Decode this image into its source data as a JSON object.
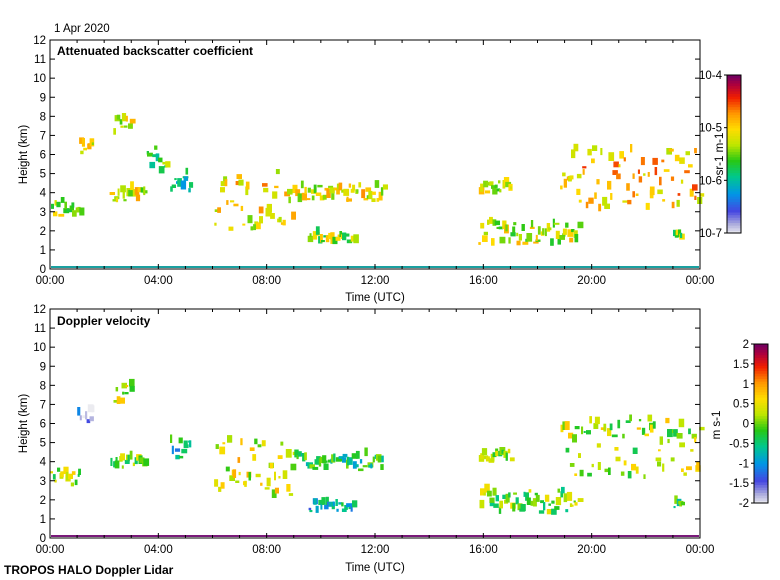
{
  "date_label": "1 Apr 2020",
  "footer": "TROPOS HALO Doppler Lidar",
  "chart_data": [
    {
      "type": "heatmap",
      "title": "Attenuated backscatter coefficient",
      "xlabel": "Time (UTC)",
      "ylabel": "Height (km)",
      "xlim": [
        0,
        24
      ],
      "ylim": [
        0,
        12
      ],
      "x_ticks": [
        0,
        4,
        8,
        12,
        16,
        20,
        24
      ],
      "x_tick_labels": [
        "00:00",
        "04:00",
        "08:00",
        "12:00",
        "16:00",
        "20:00",
        "00:00"
      ],
      "y_ticks": [
        0,
        1,
        2,
        3,
        4,
        5,
        6,
        7,
        8,
        9,
        10,
        11,
        12
      ],
      "colorbar": {
        "scale": "log",
        "range": [
          1e-07,
          0.0001
        ],
        "tick_labels": [
          "10-7",
          "10-6",
          "10-5",
          "10-4"
        ],
        "tick_values": [
          1e-07,
          1e-06,
          1e-05,
          0.0001
        ],
        "unit_label": "sr-1 m-1"
      },
      "features": [
        {
          "t0": 0.0,
          "t1": 1.1,
          "h0": 2.7,
          "h1": 3.5,
          "level": 0.55
        },
        {
          "t0": 1.0,
          "t1": 1.6,
          "h0": 6.0,
          "h1": 6.6,
          "level": 0.62
        },
        {
          "t0": 2.2,
          "t1": 3.5,
          "h0": 3.5,
          "h1": 4.2,
          "level": 0.6
        },
        {
          "t0": 2.3,
          "t1": 3.0,
          "h0": 7.0,
          "h1": 8.0,
          "level": 0.6
        },
        {
          "t0": 3.5,
          "t1": 4.3,
          "h0": 4.8,
          "h1": 6.3,
          "level": 0.45
        },
        {
          "t0": 4.4,
          "t1": 5.2,
          "h0": 4.0,
          "h1": 5.0,
          "level": 0.4
        },
        {
          "t0": 6.0,
          "t1": 9.0,
          "h0": 2.0,
          "h1": 5.0,
          "level": 0.65
        },
        {
          "t0": 9.0,
          "t1": 12.3,
          "h0": 3.5,
          "h1": 4.3,
          "level": 0.62
        },
        {
          "t0": 9.5,
          "t1": 11.2,
          "h0": 1.3,
          "h1": 1.8,
          "level": 0.55
        },
        {
          "t0": 15.8,
          "t1": 17.0,
          "h0": 3.9,
          "h1": 4.5,
          "level": 0.6
        },
        {
          "t0": 15.8,
          "t1": 19.5,
          "h0": 1.2,
          "h1": 2.4,
          "level": 0.58
        },
        {
          "t0": 18.8,
          "t1": 24.0,
          "h0": 3.0,
          "h1": 6.2,
          "level": 0.7
        },
        {
          "t0": 23.0,
          "t1": 23.3,
          "h0": 1.5,
          "h1": 1.9,
          "level": 0.5
        }
      ]
    },
    {
      "type": "heatmap",
      "title": "Doppler velocity",
      "xlabel": "Time (UTC)",
      "ylabel": "Height (km)",
      "xlim": [
        0,
        24
      ],
      "ylim": [
        0,
        12
      ],
      "x_ticks": [
        0,
        4,
        8,
        12,
        16,
        20,
        24
      ],
      "x_tick_labels": [
        "00:00",
        "04:00",
        "08:00",
        "12:00",
        "16:00",
        "20:00",
        "00:00"
      ],
      "y_ticks": [
        0,
        1,
        2,
        3,
        4,
        5,
        6,
        7,
        8,
        9,
        10,
        11,
        12
      ],
      "colorbar": {
        "scale": "linear",
        "range": [
          -2,
          2
        ],
        "tick_labels": [
          "-2",
          "-1.5",
          "-1",
          "-0.5",
          "0",
          "0.5",
          "1",
          "1.5",
          "2"
        ],
        "tick_values": [
          -2,
          -1.5,
          -1,
          -0.5,
          0,
          0.5,
          1,
          1.5,
          2
        ],
        "unit_label": "m s-1"
      },
      "features": [
        {
          "t0": 0.0,
          "t1": 1.1,
          "h0": 2.7,
          "h1": 3.5,
          "level": 0.55
        },
        {
          "t0": 1.0,
          "t1": 1.6,
          "h0": 6.0,
          "h1": 6.6,
          "level": 0.08
        },
        {
          "t0": 2.2,
          "t1": 3.5,
          "h0": 3.5,
          "h1": 4.2,
          "level": 0.5
        },
        {
          "t0": 2.3,
          "t1": 3.0,
          "h0": 7.0,
          "h1": 8.0,
          "level": 0.55
        },
        {
          "t0": 4.4,
          "t1": 5.2,
          "h0": 4.0,
          "h1": 5.0,
          "level": 0.35
        },
        {
          "t0": 6.0,
          "t1": 9.0,
          "h0": 2.0,
          "h1": 5.0,
          "level": 0.6
        },
        {
          "t0": 9.0,
          "t1": 12.3,
          "h0": 3.5,
          "h1": 4.3,
          "level": 0.4
        },
        {
          "t0": 9.5,
          "t1": 11.2,
          "h0": 1.3,
          "h1": 1.8,
          "level": 0.3
        },
        {
          "t0": 15.8,
          "t1": 17.0,
          "h0": 3.9,
          "h1": 4.5,
          "level": 0.5
        },
        {
          "t0": 15.8,
          "t1": 19.5,
          "h0": 1.2,
          "h1": 2.4,
          "level": 0.5
        },
        {
          "t0": 18.8,
          "t1": 24.0,
          "h0": 3.0,
          "h1": 6.2,
          "level": 0.55
        },
        {
          "t0": 23.0,
          "t1": 23.3,
          "h0": 1.5,
          "h1": 1.9,
          "level": 0.45
        }
      ]
    }
  ]
}
